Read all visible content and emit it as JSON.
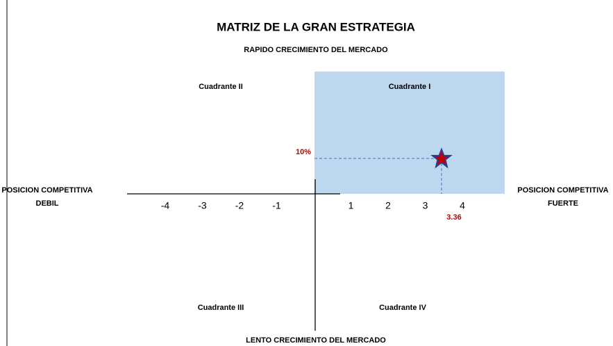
{
  "title": "MATRIZ DE LA GRAN ESTRATEGIA",
  "top_label": "RAPIDO CRECIMIENTO DEL MERCADO",
  "bottom_label": "LENTO CRECIMIENTO DEL MERCADO",
  "left_label": [
    "POSICION COMPETITIVA",
    "DEBIL"
  ],
  "right_label": [
    "POSICION COMPETITIVA",
    "FUERTE"
  ],
  "quadrants": [
    "Cuadrante I",
    "Cuadrante II",
    "Cuadrante III",
    "Cuadrante IV"
  ],
  "x_ticks": [
    -4,
    -3,
    -2,
    -1,
    1,
    2,
    3,
    4
  ],
  "point": {
    "x_label": "3.36",
    "y_label": "10%"
  }
}
